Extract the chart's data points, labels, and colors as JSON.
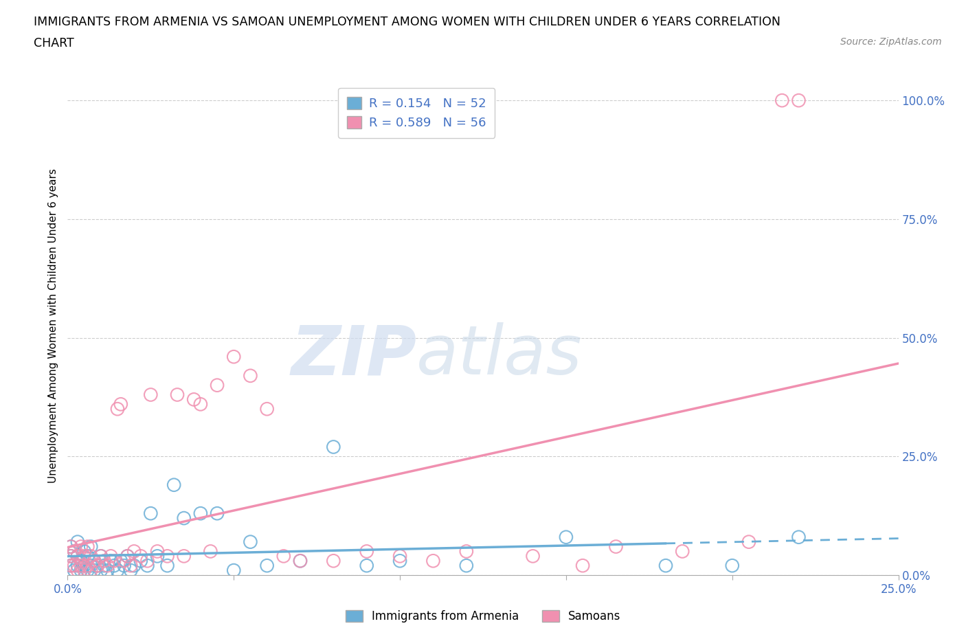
{
  "title_line1": "IMMIGRANTS FROM ARMENIA VS SAMOAN UNEMPLOYMENT AMONG WOMEN WITH CHILDREN UNDER 6 YEARS CORRELATION",
  "title_line2": "CHART",
  "source": "Source: ZipAtlas.com",
  "ylabel": "Unemployment Among Women with Children Under 6 years",
  "xlim": [
    0.0,
    0.25
  ],
  "ylim": [
    0.0,
    1.05
  ],
  "xtick_vals": [
    0.0,
    0.05,
    0.1,
    0.15,
    0.2,
    0.25
  ],
  "xtick_labels": [
    "0.0%",
    "",
    "",
    "",
    "",
    "25.0%"
  ],
  "ytick_vals": [
    0.0,
    0.25,
    0.5,
    0.75,
    1.0
  ],
  "ytick_labels": [
    "0.0%",
    "25.0%",
    "50.0%",
    "75.0%",
    "100.0%"
  ],
  "color_armenia": "#6baed6",
  "color_samoan": "#f090b0",
  "text_color": "#4472c4",
  "R_armenia": 0.154,
  "N_armenia": 52,
  "R_samoan": 0.589,
  "N_samoan": 56,
  "armenia_x": [
    0.001,
    0.001,
    0.001,
    0.002,
    0.002,
    0.003,
    0.003,
    0.003,
    0.004,
    0.004,
    0.005,
    0.005,
    0.006,
    0.006,
    0.007,
    0.007,
    0.008,
    0.008,
    0.009,
    0.01,
    0.01,
    0.011,
    0.012,
    0.013,
    0.014,
    0.015,
    0.016,
    0.017,
    0.018,
    0.019,
    0.02,
    0.022,
    0.024,
    0.025,
    0.027,
    0.03,
    0.032,
    0.035,
    0.04,
    0.045,
    0.05,
    0.055,
    0.06,
    0.07,
    0.08,
    0.09,
    0.1,
    0.12,
    0.15,
    0.18,
    0.2,
    0.22
  ],
  "armenia_y": [
    0.02,
    0.04,
    0.06,
    0.01,
    0.05,
    0.02,
    0.04,
    0.07,
    0.01,
    0.03,
    0.02,
    0.05,
    0.01,
    0.04,
    0.02,
    0.06,
    0.01,
    0.03,
    0.02,
    0.01,
    0.04,
    0.02,
    0.01,
    0.03,
    0.02,
    0.01,
    0.03,
    0.02,
    0.04,
    0.01,
    0.02,
    0.03,
    0.02,
    0.13,
    0.04,
    0.02,
    0.19,
    0.12,
    0.13,
    0.13,
    0.01,
    0.07,
    0.02,
    0.03,
    0.27,
    0.02,
    0.03,
    0.02,
    0.08,
    0.02,
    0.02,
    0.08
  ],
  "samoan_x": [
    0.001,
    0.001,
    0.001,
    0.002,
    0.002,
    0.003,
    0.003,
    0.004,
    0.004,
    0.005,
    0.005,
    0.006,
    0.006,
    0.007,
    0.007,
    0.008,
    0.009,
    0.01,
    0.011,
    0.012,
    0.013,
    0.014,
    0.015,
    0.016,
    0.017,
    0.018,
    0.019,
    0.02,
    0.022,
    0.024,
    0.025,
    0.027,
    0.03,
    0.033,
    0.035,
    0.038,
    0.04,
    0.043,
    0.045,
    0.05,
    0.055,
    0.06,
    0.065,
    0.07,
    0.08,
    0.09,
    0.1,
    0.11,
    0.12,
    0.14,
    0.155,
    0.165,
    0.185,
    0.205,
    0.215,
    0.22
  ],
  "samoan_y": [
    0.02,
    0.04,
    0.06,
    0.02,
    0.05,
    0.01,
    0.04,
    0.02,
    0.06,
    0.01,
    0.04,
    0.02,
    0.06,
    0.01,
    0.04,
    0.03,
    0.02,
    0.04,
    0.03,
    0.02,
    0.04,
    0.03,
    0.35,
    0.36,
    0.03,
    0.04,
    0.02,
    0.05,
    0.04,
    0.03,
    0.38,
    0.05,
    0.04,
    0.38,
    0.04,
    0.37,
    0.36,
    0.05,
    0.4,
    0.46,
    0.42,
    0.35,
    0.04,
    0.03,
    0.03,
    0.05,
    0.04,
    0.03,
    0.05,
    0.04,
    0.02,
    0.06,
    0.05,
    0.07,
    1.0,
    1.0
  ],
  "watermark_zip": "ZIP",
  "watermark_atlas": "atlas",
  "background_color": "#ffffff",
  "grid_color": "#cccccc"
}
